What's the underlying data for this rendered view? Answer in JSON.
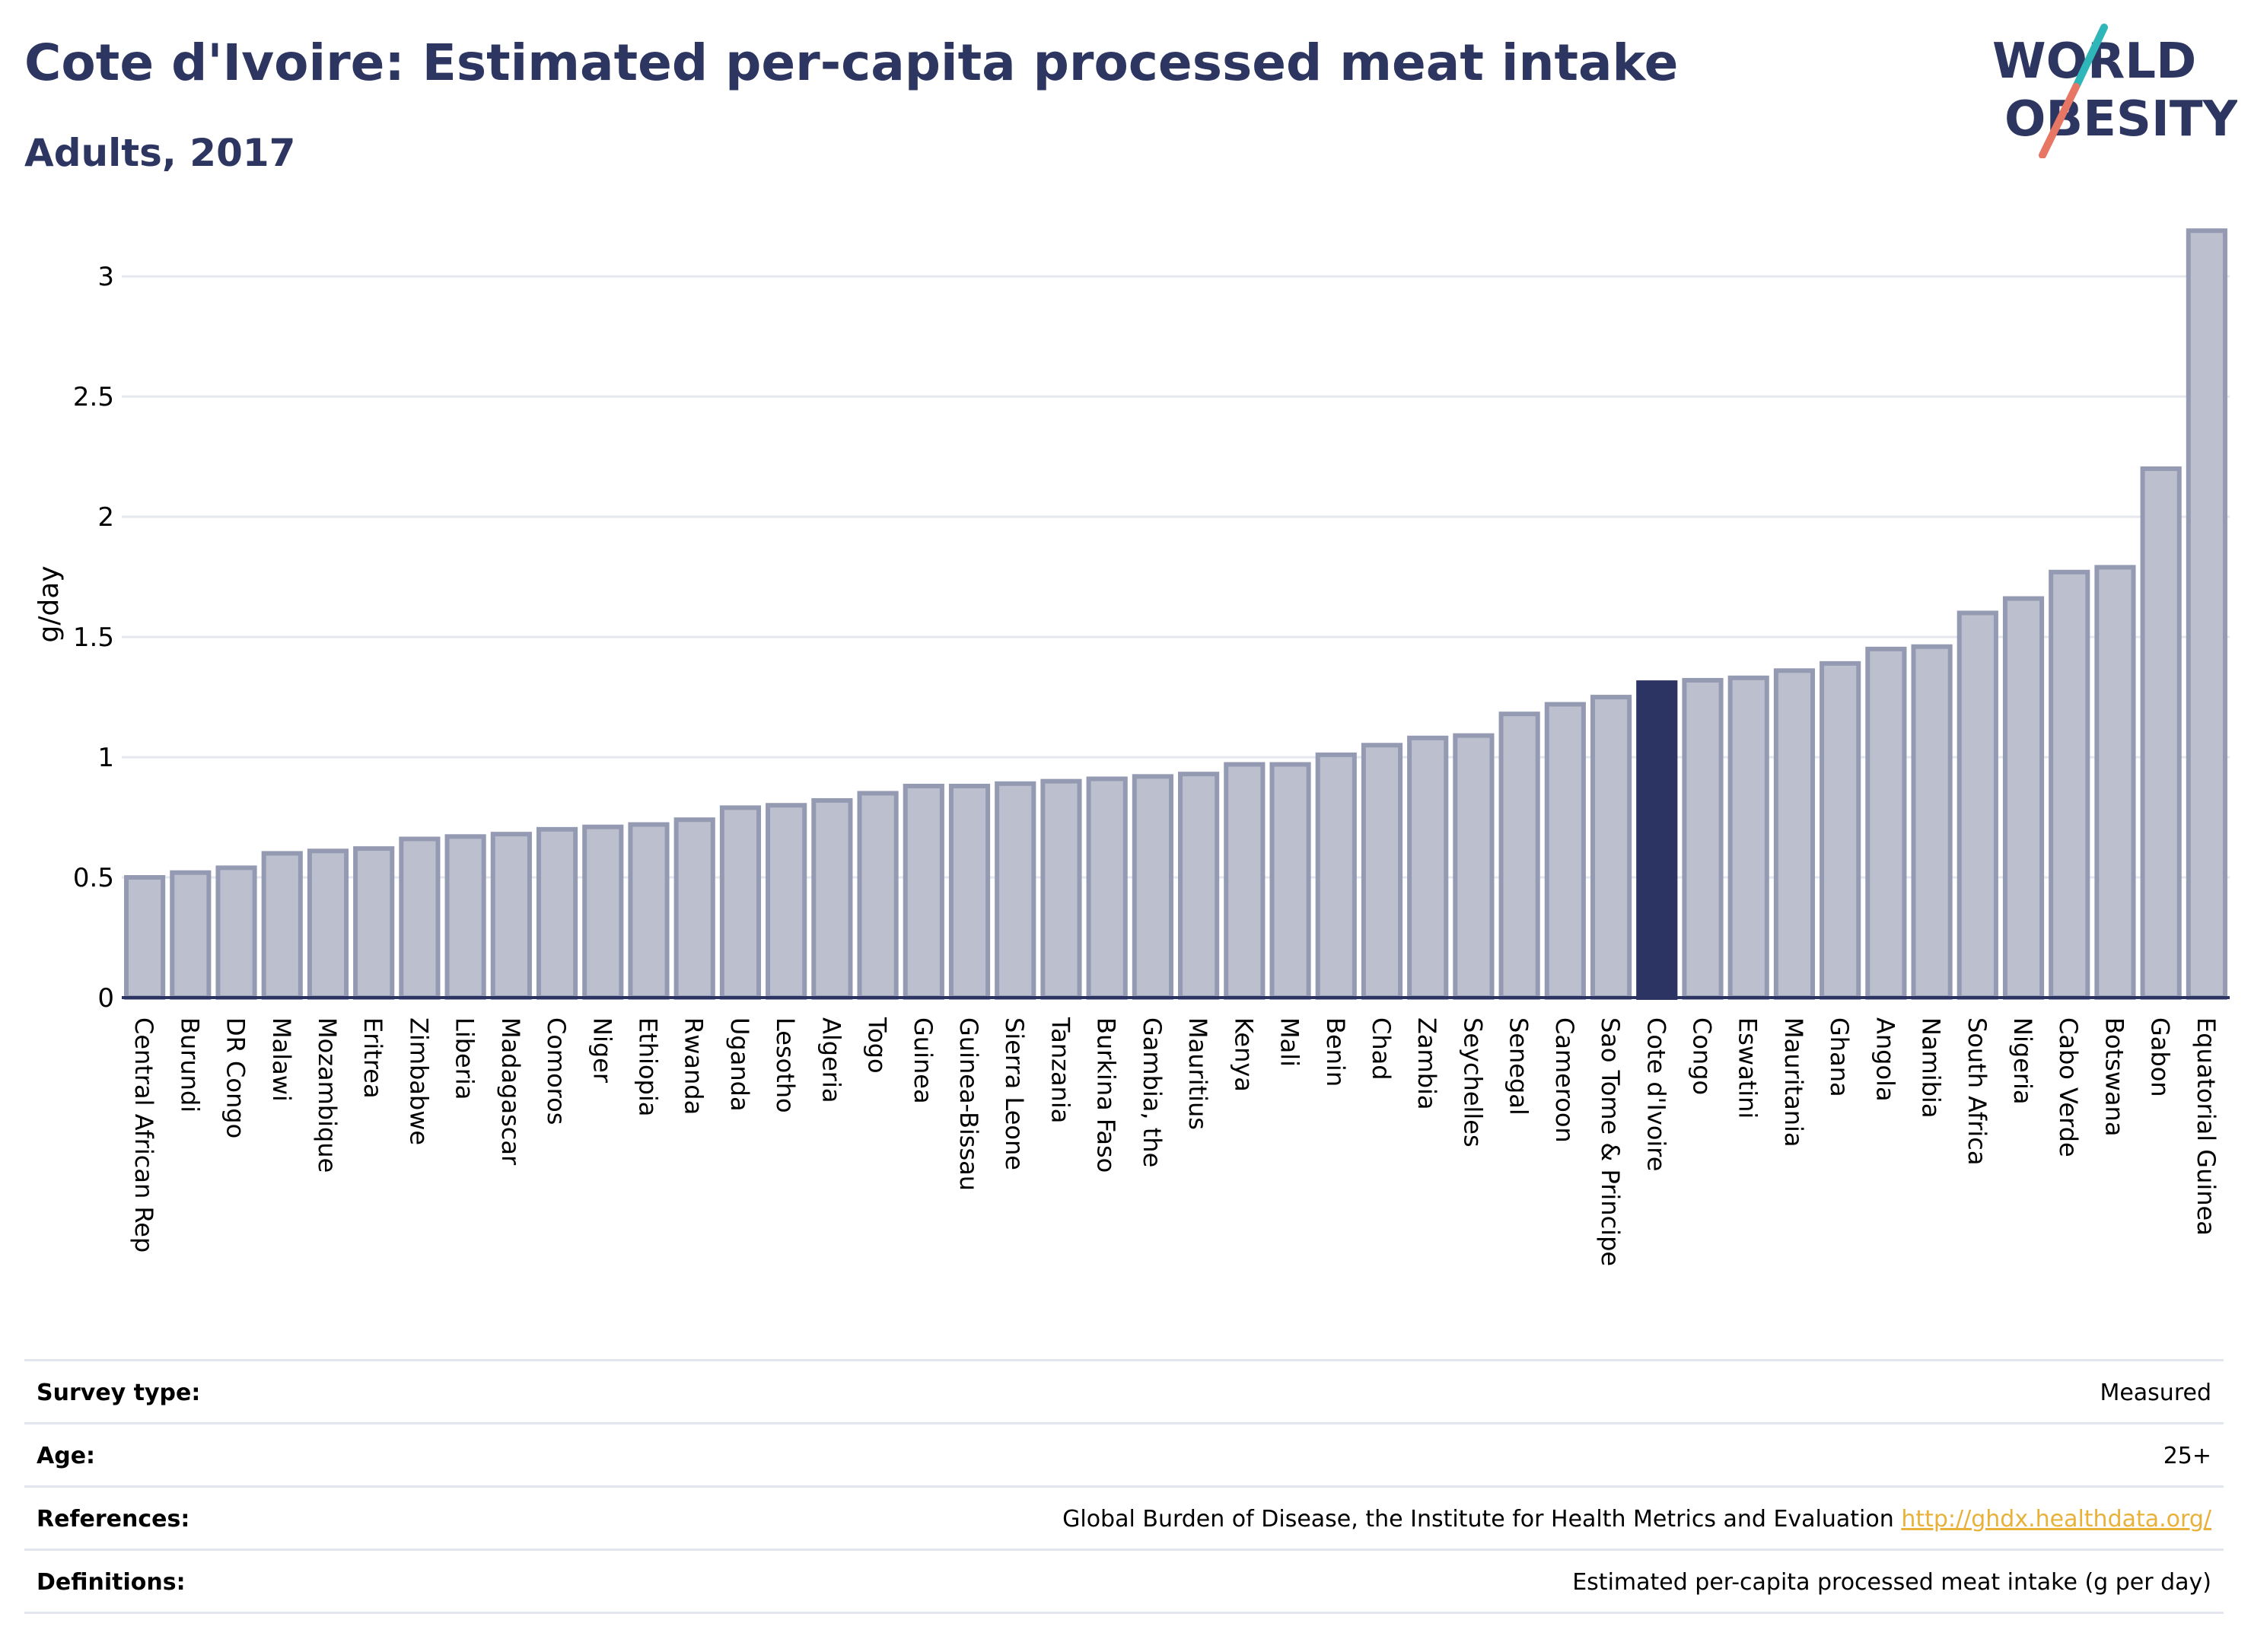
{
  "header": {
    "title": "Cote d'Ivoire: Estimated per-capita processed meat intake",
    "subtitle": "Adults, 2017"
  },
  "logo": {
    "line1": "WORLD",
    "line2": "OBESITY"
  },
  "colors": {
    "bar": "#bcc0ce",
    "bar_border": "#959ab3",
    "highlight": "#2b3463",
    "text": "#2d3561",
    "grid": "#e6e8ef",
    "accent_teal": "#2fb6b8",
    "accent_coral": "#e87665",
    "link": "#e8b23a"
  },
  "chart_data": {
    "type": "bar",
    "title": "Cote d'Ivoire: Estimated per-capita processed meat intake",
    "subtitle": "Adults, 2017",
    "ylabel": "g/day",
    "xlabel": "",
    "ylim": [
      0,
      3.2
    ],
    "yticks": [
      0,
      0.5,
      1,
      1.5,
      2,
      2.5,
      3
    ],
    "ytick_labels": [
      "0",
      "0.5",
      "1",
      "1.5",
      "2",
      "2.5",
      "3"
    ],
    "grid": true,
    "highlight": "Cote d'Ivoire",
    "categories": [
      "Central African Rep",
      "Burundi",
      "DR Congo",
      "Malawi",
      "Mozambique",
      "Eritrea",
      "Zimbabwe",
      "Liberia",
      "Madagascar",
      "Comoros",
      "Niger",
      "Ethiopia",
      "Rwanda",
      "Uganda",
      "Lesotho",
      "Algeria",
      "Togo",
      "Guinea",
      "Guinea-Bissau",
      "Sierra Leone",
      "Tanzania",
      "Burkina Faso",
      "Gambia, the",
      "Mauritius",
      "Kenya",
      "Mali",
      "Benin",
      "Chad",
      "Zambia",
      "Seychelles",
      "Senegal",
      "Cameroon",
      "Sao Tome & Principe",
      "Cote d'Ivoire",
      "Congo",
      "Eswatini",
      "Mauritania",
      "Ghana",
      "Angola",
      "Namibia",
      "South Africa",
      "Nigeria",
      "Cabo Verde",
      "Botswana",
      "Gabon",
      "Equatorial Guinea"
    ],
    "values": [
      0.5,
      0.52,
      0.54,
      0.6,
      0.61,
      0.62,
      0.66,
      0.67,
      0.68,
      0.7,
      0.71,
      0.72,
      0.74,
      0.79,
      0.8,
      0.82,
      0.85,
      0.88,
      0.88,
      0.89,
      0.9,
      0.91,
      0.92,
      0.93,
      0.97,
      0.97,
      1.01,
      1.05,
      1.08,
      1.09,
      1.18,
      1.22,
      1.25,
      1.31,
      1.32,
      1.33,
      1.36,
      1.39,
      1.45,
      1.46,
      1.6,
      1.66,
      1.77,
      1.79,
      2.2,
      3.19
    ]
  },
  "info": [
    {
      "key": "Survey type:",
      "value": "Measured",
      "link": ""
    },
    {
      "key": "Age:",
      "value": "25+",
      "link": ""
    },
    {
      "key": "References:",
      "value": "Global Burden of Disease, the Institute for Health Metrics and Evaluation",
      "link": "http://ghdx.healthdata.org/"
    },
    {
      "key": "Definitions:",
      "value": "Estimated per-capita processed meat intake (g per day)",
      "link": ""
    }
  ]
}
